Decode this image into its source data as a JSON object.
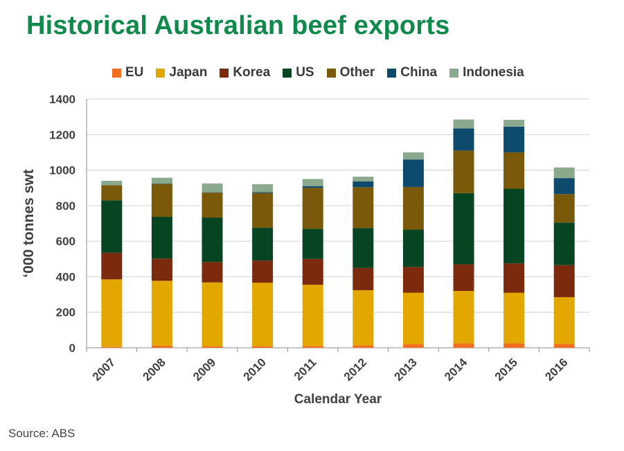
{
  "title": "Historical Australian beef exports",
  "source": "Source: ABS",
  "chart_data": {
    "type": "bar",
    "stacked": true,
    "categories": [
      "2007",
      "2008",
      "2009",
      "2010",
      "2011",
      "2012",
      "2013",
      "2014",
      "2015",
      "2016"
    ],
    "series": [
      {
        "name": "EU",
        "color": "#f26f21",
        "values": [
          5,
          12,
          8,
          8,
          10,
          14,
          20,
          25,
          25,
          22
        ]
      },
      {
        "name": "Japan",
        "color": "#e3a800",
        "values": [
          380,
          365,
          360,
          358,
          345,
          310,
          290,
          295,
          285,
          263
        ]
      },
      {
        "name": "Korea",
        "color": "#7b2a0e",
        "values": [
          150,
          125,
          115,
          125,
          145,
          125,
          145,
          150,
          165,
          180
        ]
      },
      {
        "name": "US",
        "color": "#064422",
        "values": [
          295,
          235,
          250,
          185,
          170,
          225,
          210,
          400,
          420,
          240
        ]
      },
      {
        "name": "Other",
        "color": "#7a5a0a",
        "values": [
          85,
          185,
          140,
          195,
          230,
          230,
          240,
          240,
          205,
          160
        ]
      },
      {
        "name": "China",
        "color": "#0d4a6b",
        "values": [
          0,
          2,
          2,
          5,
          10,
          32,
          155,
          125,
          145,
          90
        ]
      },
      {
        "name": "Indonesia",
        "color": "#8aa98d",
        "values": [
          25,
          33,
          50,
          45,
          40,
          27,
          40,
          50,
          38,
          60
        ]
      }
    ],
    "ylim": [
      0,
      1400
    ],
    "yticks": [
      0,
      200,
      400,
      600,
      800,
      1000,
      1200,
      1400
    ],
    "xlabel": "Calendar Year",
    "ylabel": "‘000 tonnes swt",
    "grid": true,
    "legend_position": "top"
  }
}
